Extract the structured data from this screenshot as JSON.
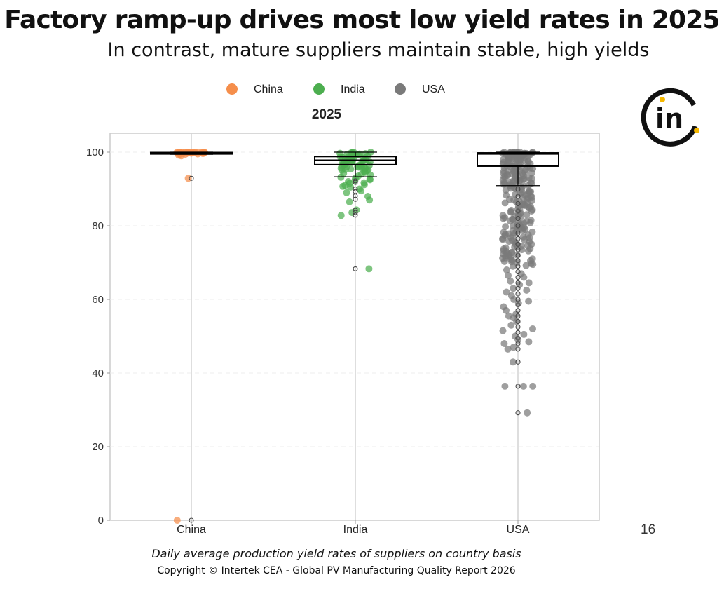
{
  "slide": {
    "title": "Factory ramp-up drives most low yield rates in 2025",
    "subtitle": "In contrast, mature suppliers maintain stable, high yields",
    "caption": "Daily average production yield rates of suppliers on country basis",
    "copyright": "Copyright © Intertek CEA -  Global PV Manufacturing Quality Report 2026",
    "page_number": "16",
    "logo_icon": "intertek-logo-icon",
    "logo_text": "in",
    "logo_colors": {
      "ring": "#111111",
      "dots": "#f5b800"
    }
  },
  "chart_data": {
    "type": "box-strip",
    "title": "2025",
    "categories": [
      "China",
      "India",
      "USA"
    ],
    "colors": {
      "China": "#f58e4b",
      "India": "#4cae4f",
      "USA": "#7a7a7a"
    },
    "legend": {
      "position": "top",
      "entries": [
        "China",
        "India",
        "USA"
      ]
    },
    "ylim": [
      0,
      105
    ],
    "yticks": [
      0,
      20,
      40,
      60,
      80,
      100
    ],
    "grid": true,
    "boxes": [
      {
        "name": "China",
        "q1": 99.5,
        "median": 99.8,
        "q3": 99.9,
        "whisker_low": 99.4,
        "whisker_high": 100,
        "outliers": [
          92.9,
          0
        ]
      },
      {
        "name": "India",
        "q1": 96.6,
        "median": 97.8,
        "q3": 98.8,
        "whisker_low": 93.3,
        "whisker_high": 100,
        "outliers": [
          92.2,
          91.8,
          90.0,
          89.3,
          88.1,
          87.2,
          84.2,
          83.6,
          82.9,
          68.3
        ]
      },
      {
        "name": "USA",
        "q1": 96.2,
        "median": 99.5,
        "q3": 99.8,
        "whisker_low": 90.9,
        "whisker_high": 100,
        "outliers": [
          90.0,
          88.0,
          86.0,
          84.0,
          82.0,
          80.0,
          78.0,
          76.5,
          75.0,
          73.5,
          72.0,
          70.5,
          69.0,
          67.5,
          66.0,
          64.5,
          63.0,
          61.5,
          60.0,
          58.5,
          57.0,
          55.5,
          54.0,
          52.5,
          51.0,
          49.5,
          48.0,
          46.5,
          43.0,
          36.4,
          29.2
        ]
      }
    ],
    "points": {
      "China": [
        100.0,
        100.0,
        99.9,
        99.9,
        99.8,
        99.8,
        99.7,
        99.9,
        100.0,
        99.6,
        99.5,
        99.9,
        100.0,
        99.8,
        99.7,
        99.9,
        100.0,
        100.0,
        99.4,
        99.8,
        99.9,
        99.6,
        100.0,
        99.9,
        99.8,
        99.7,
        100.0,
        99.9,
        99.5,
        99.8,
        99.2,
        99.0,
        92.9,
        0
      ],
      "India": [
        100.0,
        99.8,
        99.5,
        99.3,
        99.0,
        98.8,
        98.5,
        98.2,
        98.0,
        97.8,
        97.5,
        97.2,
        97.0,
        96.8,
        96.5,
        96.2,
        96.0,
        95.8,
        95.5,
        95.2,
        95.0,
        94.5,
        94.0,
        93.5,
        93.0,
        92.5,
        92.0,
        91.5,
        91.0,
        90.5,
        90.0,
        89.5,
        89.0,
        88.0,
        87.0,
        86.5,
        84.3,
        83.6,
        82.8,
        68.3,
        99.9,
        99.6,
        99.2,
        98.9,
        98.6,
        98.3,
        97.9,
        97.6,
        97.3,
        96.9,
        96.6,
        96.3,
        95.9,
        95.6,
        95.3,
        94.8,
        94.2,
        93.8,
        93.2,
        92.7,
        92.3,
        91.7,
        91.2,
        90.7,
        100.0,
        99.7,
        99.4,
        99.1,
        98.7,
        98.4,
        98.1,
        97.7,
        97.4,
        97.1,
        96.7,
        96.4,
        96.1,
        95.7,
        95.4,
        95.1
      ],
      "USA": [
        100.0,
        99.9,
        99.8,
        99.7,
        99.6,
        99.5,
        99.4,
        99.2,
        99.0,
        98.8,
        98.5,
        98.2,
        98.0,
        97.6,
        97.2,
        96.8,
        96.4,
        96.0,
        95.5,
        95.0,
        94.5,
        94.0,
        93.5,
        93.0,
        92.5,
        92.0,
        91.5,
        91.0,
        90.5,
        90.0,
        89.5,
        89.0,
        88.5,
        88.0,
        87.5,
        87.0,
        86.5,
        86.0,
        85.5,
        85.0,
        84.5,
        84.0,
        83.5,
        83.0,
        82.5,
        82.0,
        81.5,
        81.0,
        80.5,
        80.0,
        79.5,
        79.0,
        78.5,
        78.0,
        77.5,
        77.0,
        76.5,
        76.0,
        75.5,
        75.0,
        74.5,
        74.0,
        73.5,
        73.0,
        72.5,
        72.0,
        71.5,
        71.0,
        70.5,
        70.0,
        69.5,
        69.0,
        68.0,
        67.0,
        66.5,
        66.0,
        65.0,
        64.5,
        64.0,
        63.0,
        62.5,
        62.0,
        61.0,
        60.0,
        59.5,
        59.0,
        58.0,
        57.0,
        56.0,
        55.5,
        55.0,
        54.0,
        53.0,
        52.0,
        51.5,
        50.5,
        50.0,
        49.0,
        48.5,
        48.0,
        47.0,
        46.5,
        43.0,
        36.4,
        36.4,
        36.4,
        29.2,
        100.0,
        99.9,
        99.8,
        99.6,
        99.3,
        99.1,
        98.7,
        98.3,
        97.9,
        97.4,
        96.9,
        96.3,
        95.7,
        95.2,
        94.7,
        94.2,
        93.7,
        93.2,
        92.7,
        92.2,
        91.7,
        91.2,
        90.7,
        90.2,
        89.7,
        89.2,
        88.7,
        88.2,
        87.7,
        87.2,
        86.7,
        86.2,
        85.7,
        85.2,
        84.7,
        84.2,
        83.7,
        83.2,
        82.7,
        82.2,
        81.7,
        81.2,
        80.7,
        80.2,
        79.7,
        79.2,
        78.7,
        78.2,
        77.7,
        77.2,
        76.7,
        76.2,
        75.7,
        75.2,
        74.7,
        74.2,
        73.7,
        73.2,
        72.7,
        72.2,
        71.7,
        71.2,
        70.7,
        70.2,
        69.7,
        69.2,
        100.0,
        99.9,
        99.7,
        99.5,
        99.4,
        99.2,
        98.9,
        98.6,
        98.1,
        97.7,
        97.0,
        96.5,
        95.9,
        95.3,
        94.8,
        94.3,
        93.8,
        93.3,
        92.8,
        92.3,
        91.8,
        91.3,
        90.8,
        90.3,
        89.8,
        89.3,
        88.8,
        88.3,
        87.8,
        87.3,
        86.8,
        86.3,
        85.8,
        85.3,
        84.8,
        84.3,
        83.8,
        83.3,
        82.8,
        82.3,
        81.8,
        81.3,
        80.8,
        80.3,
        79.8,
        79.3,
        78.8,
        78.3,
        77.8,
        77.3,
        76.8,
        76.3,
        75.8,
        75.3,
        74.8,
        74.3,
        73.8,
        73.3,
        72.8,
        72.3,
        71.8,
        71.3,
        70.8,
        70.3,
        100.0,
        99.95,
        99.85,
        99.75,
        99.65,
        99.45,
        99.35,
        99.15,
        98.95,
        98.75,
        98.45,
        98.15,
        97.85,
        97.55,
        97.25,
        96.95,
        96.65,
        96.35,
        96.05,
        95.75,
        95.45,
        95.15,
        94.85,
        94.55,
        94.25,
        93.95,
        93.65,
        93.35,
        93.05,
        92.75,
        92.45,
        92.15,
        91.85,
        91.55,
        91.25,
        90.95
      ]
    }
  }
}
